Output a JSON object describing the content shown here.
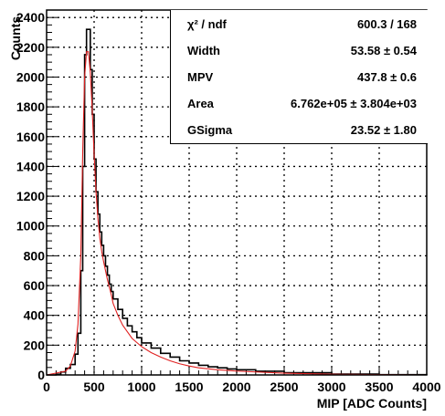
{
  "chart_data": {
    "type": "histogram",
    "xlabel": "MIP [ADC Counts]",
    "ylabel": "Counts",
    "xlim": [
      0,
      4000
    ],
    "ylim": [
      0,
      2450
    ],
    "grid": true,
    "x_ticks": [
      0,
      500,
      1000,
      1500,
      2000,
      2500,
      3000,
      3500,
      4000
    ],
    "x_tick_labels": [
      "0",
      "500",
      "1000",
      "1500",
      "2000",
      "2500",
      "3000",
      "3500",
      "4000"
    ],
    "y_ticks": [
      0,
      200,
      400,
      600,
      800,
      1000,
      1200,
      1400,
      1600,
      1800,
      2000,
      2200,
      2400
    ],
    "y_tick_labels": [
      "0",
      "200",
      "400",
      "600",
      "800",
      "1000",
      "1200",
      "1400",
      "1600",
      "1800",
      "2000",
      "2200",
      "2400"
    ],
    "histogram": {
      "color": "#000000",
      "x": [
        0,
        100,
        150,
        200,
        250,
        300,
        330,
        360,
        380,
        400,
        420,
        440,
        460,
        480,
        500,
        520,
        540,
        560,
        580,
        600,
        620,
        640,
        660,
        680,
        700,
        750,
        800,
        850,
        900,
        950,
        1000,
        1100,
        1200,
        1300,
        1400,
        1500,
        1600,
        1700,
        1800,
        1900,
        2000,
        2200,
        2500,
        3000,
        3500,
        4000
      ],
      "y": [
        0,
        5,
        20,
        45,
        70,
        140,
        280,
        700,
        1400,
        2150,
        2320,
        2320,
        2050,
        1750,
        1450,
        1230,
        1080,
        960,
        870,
        800,
        730,
        670,
        610,
        560,
        510,
        440,
        380,
        330,
        290,
        250,
        215,
        180,
        145,
        120,
        95,
        80,
        65,
        55,
        48,
        40,
        35,
        25,
        15,
        6,
        2,
        0
      ]
    },
    "fit": {
      "type": "line",
      "color": "#e02020",
      "x": [
        0,
        200,
        250,
        300,
        330,
        360,
        380,
        400,
        420,
        440,
        460,
        480,
        500,
        520,
        540,
        560,
        580,
        600,
        640,
        680,
        700,
        750,
        800,
        850,
        900,
        1000,
        1100,
        1200,
        1300,
        1400,
        1500,
        1600,
        1800,
        2000,
        2500,
        3000,
        3500,
        4000
      ],
      "y": [
        0,
        25,
        60,
        160,
        340,
        800,
        1500,
        2000,
        2170,
        2170,
        2030,
        1780,
        1480,
        1230,
        1050,
        920,
        830,
        760,
        640,
        540,
        480,
        400,
        335,
        290,
        245,
        190,
        150,
        120,
        95,
        75,
        60,
        48,
        35,
        26,
        12,
        5,
        2,
        0
      ]
    },
    "stats": [
      {
        "key": "χ² / ndf",
        "value": "600.3 / 168"
      },
      {
        "key": "Width",
        "value": "53.58 ± 0.54"
      },
      {
        "key": "MPV",
        "value": "437.8 ± 0.6"
      },
      {
        "key": "Area",
        "value": "6.762e+05 ± 3.804e+03"
      },
      {
        "key": "GSigma",
        "value": "23.52 ± 1.80"
      }
    ]
  }
}
